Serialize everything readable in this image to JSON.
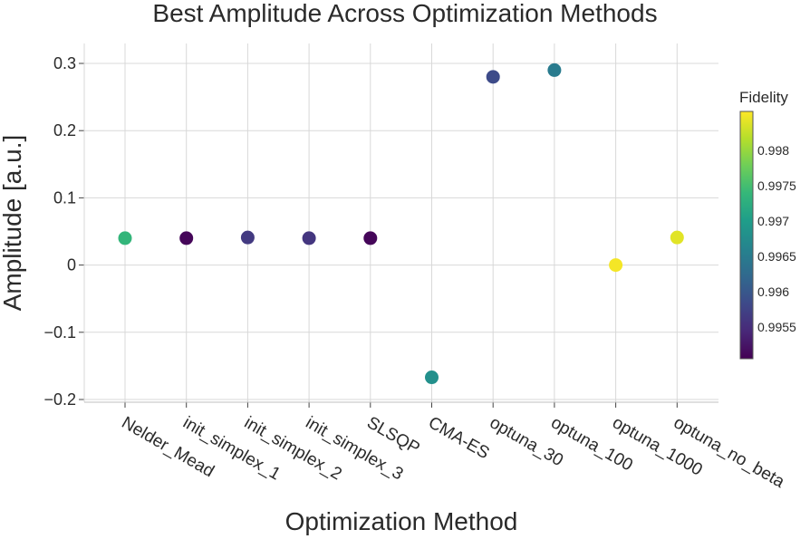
{
  "chart_data": {
    "type": "scatter",
    "title": "Best Amplitude Across Optimization Methods",
    "xlabel": "Optimization Method",
    "ylabel": "Amplitude [a.u.]",
    "categories": [
      "Nelder_Mead",
      "init_simplex_1",
      "init_simplex_2",
      "init_simplex_3",
      "SLSQP",
      "CMA-ES",
      "optuna_30",
      "optuna_100",
      "optuna_1000",
      "optuna_no_beta"
    ],
    "values": [
      0.04,
      0.04,
      0.041,
      0.04,
      0.04,
      -0.167,
      0.28,
      0.29,
      0.0,
      0.041
    ],
    "color_values": [
      0.99735,
      0.9951,
      0.99565,
      0.9956,
      0.9951,
      0.9968,
      0.99585,
      0.9965,
      0.9985,
      0.9984
    ],
    "ylim": [
      -0.21,
      0.33
    ],
    "yticks": [
      -0.2,
      -0.1,
      0,
      0.1,
      0.2,
      0.3
    ],
    "ytick_labels": [
      "−0.2",
      "−0.1",
      "0",
      "0.1",
      "0.2",
      "0.3"
    ],
    "grid": true,
    "colorbar": {
      "title": "Fidelity",
      "range": [
        0.99505,
        0.99855
      ],
      "ticks": [
        0.9955,
        0.996,
        0.9965,
        0.997,
        0.9975,
        0.998
      ],
      "tick_labels": [
        "0.9955",
        "0.996",
        "0.9965",
        "0.997",
        "0.9975",
        "0.998"
      ],
      "colorscale": "viridis"
    }
  }
}
